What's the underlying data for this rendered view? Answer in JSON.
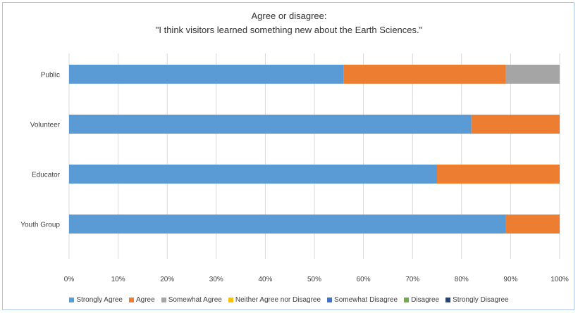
{
  "chart_data": {
    "type": "bar",
    "orientation": "horizontal",
    "stacked": true,
    "title": "Agree or disagree:",
    "subtitle": "\"I think visitors learned something new about the Earth Sciences.\"",
    "categories": [
      "Public",
      "Volunteer",
      "Educator",
      "Youth Group"
    ],
    "xlim": [
      0,
      100
    ],
    "x_ticks": [
      "0%",
      "10%",
      "20%",
      "30%",
      "40%",
      "50%",
      "60%",
      "70%",
      "80%",
      "90%",
      "100%"
    ],
    "grid": true,
    "legend_position": "bottom",
    "series": [
      {
        "name": "Strongly Agree",
        "color": "#5b9bd5",
        "values": [
          56,
          82,
          75,
          89
        ]
      },
      {
        "name": "Agree",
        "color": "#ed7d31",
        "values": [
          33,
          18,
          25,
          11
        ]
      },
      {
        "name": "Somewhat Agree",
        "color": "#a5a5a5",
        "values": [
          11,
          0,
          0,
          0
        ]
      },
      {
        "name": "Neither Agree nor Disagree",
        "color": "#ffc000",
        "values": [
          0,
          0,
          0,
          0
        ]
      },
      {
        "name": "Somewhat Disagree",
        "color": "#4472c4",
        "values": [
          0,
          0,
          0,
          0
        ]
      },
      {
        "name": "Disagree",
        "color": "#70ad47",
        "values": [
          0,
          0,
          0,
          0
        ]
      },
      {
        "name": "Strongly Disagree",
        "color": "#264478",
        "values": [
          0,
          0,
          0,
          0
        ]
      }
    ]
  }
}
